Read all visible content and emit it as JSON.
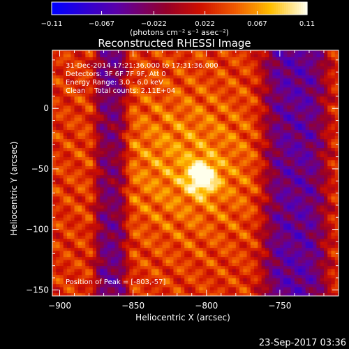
{
  "chart_data": {
    "type": "heatmap",
    "title": "Reconstructed RHESSI Image",
    "xlabel": "Heliocentric X (arcsec)",
    "ylabel": "Heliocentric Y (arcsec)",
    "xlim": [
      -905,
      -710
    ],
    "ylim": [
      -155,
      48
    ],
    "xticks": [
      -900,
      -850,
      -800,
      -750
    ],
    "xtick_labels": [
      "−900",
      "−850",
      "−800",
      "−750"
    ],
    "yticks": [
      0,
      -50,
      -100,
      -150
    ],
    "ytick_labels": [
      "0",
      "−50",
      "−100",
      "−150"
    ],
    "colorbar": {
      "min": -0.11,
      "max": 0.11,
      "ticks": [
        -0.11,
        -0.067,
        -0.022,
        0.022,
        0.067,
        0.11
      ],
      "tick_labels": [
        "−0.11",
        "−0.067",
        "−0.022",
        "0.022",
        "0.067",
        "0.11"
      ],
      "unit_label": "(photons cm⁻² s⁻¹ asec⁻²)",
      "colormap": "rhessi-std-gamma"
    },
    "annotations": [
      "31-Dec-2014 17:21:36.000 to 17:31:36.000",
      "Detectors: 3F 6F 7F 9F, Att 0",
      "Energy Range: 3.0 - 6.0 keV",
      "Clean    Total counts: 2.11E+04"
    ],
    "peak_label": "Position of Peak = [-803,-57]",
    "peak": {
      "x": -803,
      "y": -57,
      "value": 0.11
    },
    "background_level": 0.03,
    "negative_bands": [
      {
        "x_from": -875,
        "x_to": -855,
        "value": -0.04
      },
      {
        "x_from": -760,
        "x_to": -720,
        "value": -0.05
      }
    ]
  },
  "footer": {
    "date": "23-Sep-2017 03:36"
  }
}
